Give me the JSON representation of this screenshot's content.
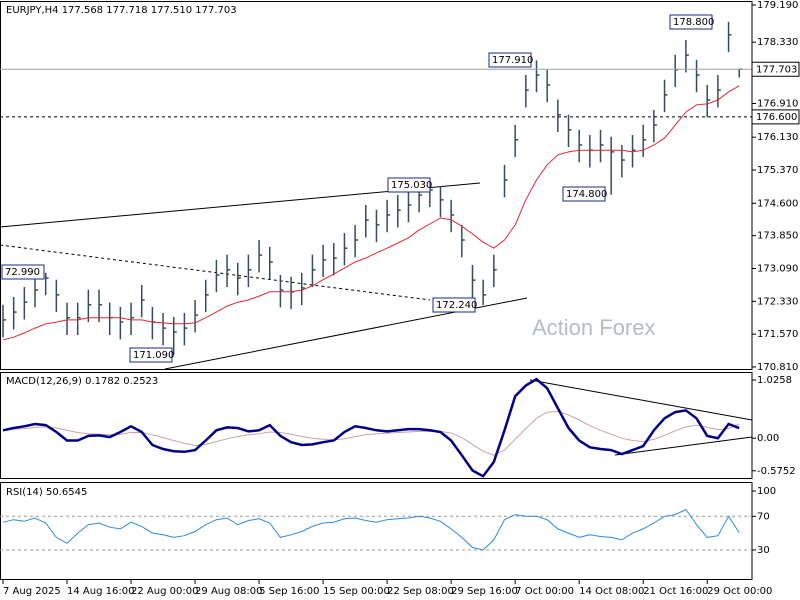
{
  "chart_data": [
    {
      "type": "ohlc",
      "title": "EURJPY,H4 177.568 177.718 177.510 177.703",
      "watermark": "Action Forex",
      "color": "#2f4f5f",
      "ma_color": "#e0282c",
      "ylim": [
        170.74,
        179.26
      ],
      "yticks": [
        {
          "value": 179.19,
          "label": "179.190"
        },
        {
          "value": 178.33,
          "label": "178.330"
        },
        {
          "value": 176.91,
          "label": "176.910"
        },
        {
          "value": 176.13,
          "label": "176.130"
        },
        {
          "value": 175.37,
          "label": "175.370"
        },
        {
          "value": 174.6,
          "label": "174.600"
        },
        {
          "value": 173.85,
          "label": "173.850"
        },
        {
          "value": 173.09,
          "label": "173.090"
        },
        {
          "value": 172.33,
          "label": "172.330"
        },
        {
          "value": 171.57,
          "label": "171.570"
        },
        {
          "value": 170.81,
          "label": "170.810"
        }
      ],
      "current_price": 177.703,
      "level": {
        "value": 176.6,
        "label": "176.600"
      },
      "annotations": [
        "72.990",
        "171.090",
        "175.030",
        "172.240",
        "177.910",
        "174.800",
        "178.800"
      ],
      "high": [
        172.25,
        172.43,
        172.66,
        172.94,
        172.99,
        172.83,
        172.3,
        172.3,
        172.6,
        172.6,
        172.3,
        172.2,
        172.3,
        172.71,
        172.2,
        172.06,
        171.97,
        172.06,
        172.36,
        172.83,
        173.29,
        173.41,
        173.22,
        173.41,
        173.75,
        173.59,
        172.94,
        172.9,
        172.99,
        173.41,
        173.64,
        173.68,
        173.91,
        174.1,
        174.56,
        174.45,
        174.68,
        174.79,
        174.91,
        175.0,
        175.03,
        175.0,
        174.68,
        174.1,
        173.17,
        172.83,
        173.41,
        175.49,
        176.42,
        177.57,
        177.91,
        177.69,
        177.0,
        176.65,
        176.3,
        176.18,
        176.3,
        176.14,
        175.95,
        176.18,
        176.42,
        176.76,
        177.46,
        178.04,
        178.38,
        177.92,
        177.34,
        177.57,
        178.8,
        177.718
      ],
      "low": [
        171.5,
        171.68,
        171.91,
        172.19,
        172.47,
        172.08,
        171.55,
        171.55,
        171.85,
        171.85,
        171.55,
        171.45,
        171.55,
        171.96,
        171.45,
        171.31,
        171.09,
        171.31,
        171.61,
        172.08,
        172.54,
        172.66,
        172.47,
        172.66,
        173.0,
        172.84,
        172.19,
        172.15,
        172.24,
        172.66,
        172.89,
        172.93,
        173.16,
        173.35,
        173.81,
        173.7,
        173.93,
        174.04,
        174.16,
        174.39,
        174.51,
        174.28,
        173.93,
        173.35,
        172.42,
        172.24,
        172.66,
        174.74,
        175.67,
        176.82,
        177.17,
        176.94,
        176.25,
        175.9,
        175.55,
        175.43,
        175.55,
        174.8,
        175.2,
        175.43,
        175.67,
        176.01,
        176.71,
        177.29,
        177.63,
        177.17,
        176.59,
        176.82,
        178.1,
        177.51
      ],
      "close": [
        171.9,
        172.08,
        172.31,
        172.59,
        172.87,
        172.48,
        171.95,
        171.95,
        172.25,
        172.25,
        171.95,
        171.85,
        171.95,
        172.36,
        171.85,
        171.71,
        171.62,
        171.71,
        172.01,
        172.48,
        172.94,
        173.06,
        172.87,
        173.06,
        173.4,
        173.24,
        172.59,
        172.55,
        172.64,
        173.06,
        173.29,
        173.33,
        173.56,
        173.75,
        174.21,
        174.1,
        174.33,
        174.44,
        174.56,
        174.79,
        174.91,
        174.68,
        174.33,
        173.75,
        172.82,
        172.48,
        173.06,
        175.14,
        176.07,
        177.22,
        177.57,
        177.34,
        176.65,
        176.3,
        175.95,
        175.83,
        175.95,
        175.79,
        175.6,
        175.83,
        176.07,
        176.41,
        177.11,
        177.69,
        178.03,
        177.57,
        176.99,
        177.22,
        178.5,
        177.703
      ],
      "ma_values": [
        171.44,
        171.5,
        171.6,
        171.71,
        171.81,
        171.85,
        171.9,
        171.9,
        171.95,
        171.95,
        171.95,
        171.95,
        171.9,
        171.9,
        171.85,
        171.83,
        171.81,
        171.81,
        171.83,
        171.95,
        172.08,
        172.22,
        172.31,
        172.36,
        172.45,
        172.55,
        172.55,
        172.55,
        172.59,
        172.69,
        172.83,
        172.96,
        173.1,
        173.24,
        173.33,
        173.45,
        173.56,
        173.68,
        173.8,
        173.98,
        174.12,
        174.26,
        174.22,
        174.07,
        173.89,
        173.7,
        173.56,
        173.75,
        174.1,
        174.68,
        175.14,
        175.49,
        175.72,
        175.79,
        175.83,
        175.83,
        175.83,
        175.83,
        175.83,
        175.79,
        175.83,
        175.95,
        176.11,
        176.41,
        176.71,
        176.88,
        176.9,
        176.99,
        177.18,
        177.32
      ]
    },
    {
      "type": "macd",
      "title": "MACD(12,26,9) 0.1782 0.2523",
      "color": "#00008b",
      "signal_color": "#c9a3a3",
      "ylim": [
        -0.72,
        1.15
      ],
      "yticks": [
        1.0258,
        {
          "value": 0,
          "label": "0.00"
        },
        -0.5752
      ],
      "macd": [
        0.14,
        0.18,
        0.21,
        0.25,
        0.23,
        0.11,
        -0.04,
        -0.04,
        0.04,
        0.05,
        0.02,
        0.11,
        0.21,
        0.11,
        -0.12,
        -0.19,
        -0.23,
        -0.24,
        -0.21,
        -0.04,
        0.14,
        0.19,
        0.18,
        0.12,
        0.14,
        0.23,
        0.04,
        -0.07,
        -0.12,
        -0.11,
        -0.07,
        -0.04,
        0.11,
        0.21,
        0.18,
        0.14,
        0.12,
        0.14,
        0.16,
        0.16,
        0.14,
        0.11,
        -0.04,
        -0.3,
        -0.57,
        -0.67,
        -0.42,
        0.14,
        0.74,
        0.93,
        1.04,
        0.88,
        0.53,
        0.18,
        -0.04,
        -0.16,
        -0.19,
        -0.21,
        -0.28,
        -0.21,
        -0.14,
        0.14,
        0.35,
        0.46,
        0.49,
        0.35,
        0.04,
        0.0,
        0.25,
        0.1782
      ],
      "signal": [
        0.15,
        0.16,
        0.17,
        0.19,
        0.2,
        0.18,
        0.14,
        0.1,
        0.08,
        0.07,
        0.06,
        0.07,
        0.1,
        0.1,
        0.06,
        0.01,
        -0.04,
        -0.09,
        -0.13,
        -0.11,
        -0.06,
        -0.01,
        0.03,
        0.06,
        0.08,
        0.11,
        0.1,
        0.07,
        0.03,
        0.0,
        -0.02,
        -0.03,
        -0.01,
        0.03,
        0.06,
        0.08,
        0.09,
        0.1,
        0.11,
        0.12,
        0.12,
        0.12,
        0.09,
        0.01,
        -0.11,
        -0.23,
        -0.3,
        -0.21,
        -0.02,
        0.17,
        0.35,
        0.46,
        0.47,
        0.41,
        0.32,
        0.22,
        0.14,
        0.07,
        0.0,
        -0.04,
        -0.06,
        -0.02,
        0.05,
        0.13,
        0.2,
        0.23,
        0.19,
        0.15,
        0.17,
        0.2523
      ]
    },
    {
      "type": "rsi",
      "title": "RSI(14) 50.6545",
      "color": "#2b8be0",
      "ylim": [
        -5.6,
        109.5
      ],
      "yticks": [
        100,
        70,
        30
      ],
      "levels": [
        70,
        30
      ],
      "values": [
        63,
        66,
        64,
        68,
        62,
        45,
        38,
        50,
        60,
        62,
        57,
        55,
        63,
        58,
        50,
        48,
        45,
        47,
        52,
        60,
        66,
        68,
        60,
        65,
        67,
        62,
        45,
        48,
        52,
        58,
        62,
        63,
        67,
        68,
        65,
        63,
        66,
        67,
        68,
        70,
        68,
        64,
        55,
        45,
        33,
        30,
        42,
        66,
        72,
        70,
        70,
        66,
        55,
        50,
        45,
        48,
        46,
        45,
        42,
        50,
        55,
        62,
        70,
        72,
        78,
        60,
        45,
        47,
        70,
        50.6545
      ],
      "xticks": [
        {
          "value": 0,
          "label": "7 Aug 2025"
        },
        {
          "value": 6,
          "label": "14 Aug 16:00"
        },
        {
          "value": 12,
          "label": "22 Aug 00:00"
        },
        {
          "value": 18,
          "label": "29 Aug 08:00"
        },
        {
          "value": 24,
          "label": "5 Sep 16:00"
        },
        {
          "value": 30,
          "label": "15 Sep 00:00"
        },
        {
          "value": 36,
          "label": "22 Sep 08:00"
        },
        {
          "value": 42,
          "label": "29 Sep 16:00"
        },
        {
          "value": 48,
          "label": "7 Oct 00:00"
        },
        {
          "value": 54,
          "label": "14 Oct 08:00"
        },
        {
          "value": 60,
          "label": "21 Oct 16:00"
        },
        {
          "value": 66,
          "label": "29 Oct 00:00"
        }
      ]
    }
  ]
}
